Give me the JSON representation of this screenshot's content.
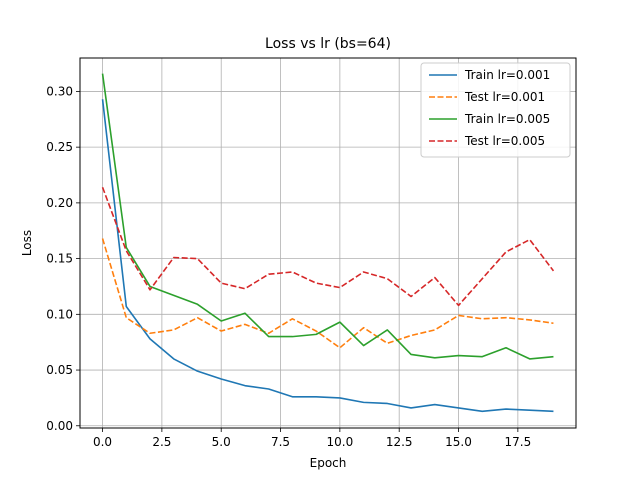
{
  "chart_data": {
    "type": "line",
    "title": "Loss vs lr (bs=64)",
    "xlabel": "Epoch",
    "ylabel": "Loss",
    "xlim": [
      -0.95,
      19.95
    ],
    "ylim": [
      -0.002,
      0.33
    ],
    "xticks": [
      0.0,
      2.5,
      5.0,
      7.5,
      10.0,
      12.5,
      15.0,
      17.5
    ],
    "xtick_labels": [
      "0.0",
      "2.5",
      "5.0",
      "7.5",
      "10.0",
      "12.5",
      "15.0",
      "17.5"
    ],
    "yticks": [
      0.0,
      0.05,
      0.1,
      0.15,
      0.2,
      0.25,
      0.3
    ],
    "ytick_labels": [
      "0.00",
      "0.05",
      "0.10",
      "0.15",
      "0.20",
      "0.25",
      "0.30"
    ],
    "grid": true,
    "legend_position": "top-right",
    "x": [
      0,
      1,
      2,
      3,
      4,
      5,
      6,
      7,
      8,
      9,
      10,
      11,
      12,
      13,
      14,
      15,
      16,
      17,
      18,
      19
    ],
    "series": [
      {
        "name": "Train lr=0.001",
        "color": "#1f77b4",
        "dash": "solid",
        "values": [
          0.293,
          0.107,
          0.078,
          0.06,
          0.049,
          0.042,
          0.036,
          0.033,
          0.026,
          0.026,
          0.025,
          0.021,
          0.02,
          0.016,
          0.019,
          0.016,
          0.013,
          0.015,
          0.014,
          0.013
        ]
      },
      {
        "name": "Test lr=0.001",
        "color": "#ff7f0e",
        "dash": "dashed",
        "values": [
          0.168,
          0.097,
          0.083,
          0.086,
          0.097,
          0.085,
          0.091,
          0.083,
          0.096,
          0.085,
          0.07,
          0.088,
          0.074,
          0.081,
          0.086,
          0.099,
          0.096,
          0.097,
          0.095,
          0.092
        ]
      },
      {
        "name": "Train lr=0.005",
        "color": "#2ca02c",
        "dash": "solid",
        "values": [
          0.316,
          0.16,
          0.125,
          0.117,
          0.109,
          0.094,
          0.101,
          0.08,
          0.08,
          0.082,
          0.093,
          0.072,
          0.086,
          0.064,
          0.061,
          0.063,
          0.062,
          0.07,
          0.06,
          0.062
        ]
      },
      {
        "name": "Test lr=0.005",
        "color": "#d62728",
        "dash": "dashed",
        "values": [
          0.214,
          0.157,
          0.122,
          0.151,
          0.15,
          0.128,
          0.123,
          0.136,
          0.138,
          0.128,
          0.124,
          0.138,
          0.132,
          0.116,
          0.133,
          0.108,
          0.132,
          0.156,
          0.167,
          0.139
        ]
      }
    ]
  }
}
